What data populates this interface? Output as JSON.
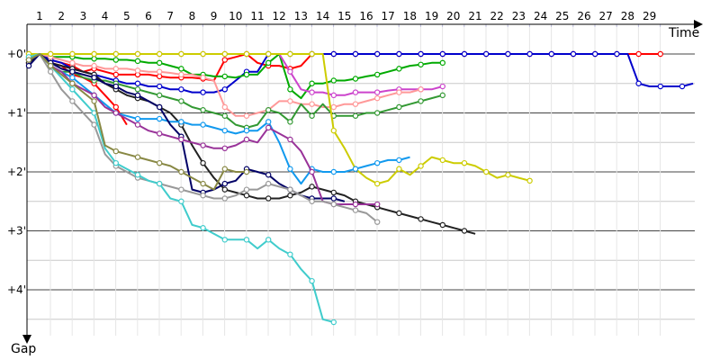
{
  "chart_data": {
    "type": "line",
    "xlabel": "Time",
    "ylabel": "Gap",
    "x_ticks": [
      "1",
      "2",
      "3",
      "4",
      "5",
      "6",
      "7",
      "8",
      "9",
      "10",
      "11",
      "12",
      "13",
      "14",
      "15",
      "16",
      "17",
      "18",
      "19",
      "20",
      "21",
      "22",
      "23",
      "24",
      "25",
      "26",
      "27",
      "28",
      "29"
    ],
    "y_ticks": [
      "+0'",
      "+1'",
      "+2'",
      "+3'",
      "+4'"
    ],
    "ylim": [
      0,
      5
    ],
    "grid": true,
    "legend": "none",
    "x_step": 0.5,
    "series": [
      {
        "color": "#ff0000",
        "values": [
          0.1,
          0,
          0.1,
          0.15,
          0.2,
          0.3,
          0.25,
          0.3,
          0.35,
          0.35,
          0.35,
          0.35,
          0.38,
          0.4,
          0.4,
          0.4,
          0.42,
          0.45,
          0.1,
          0.05,
          0,
          0.15,
          0.2,
          0.2,
          0.25,
          0.2,
          0,
          0,
          0,
          0,
          0,
          0,
          0,
          0,
          0,
          0,
          0,
          0,
          0,
          0,
          0,
          0,
          0,
          0,
          0,
          0,
          0,
          0,
          0,
          0,
          0,
          0,
          0,
          0,
          0,
          0,
          0,
          0,
          0
        ]
      },
      {
        "color": "#ff0000",
        "values": [
          0.15,
          0,
          0.15,
          0.2,
          0.35,
          0.4,
          0.5,
          0.7,
          0.9,
          1.2
        ]
      },
      {
        "color": "#0000cc",
        "values": [
          0.15,
          0,
          0.1,
          0.15,
          0.25,
          0.3,
          0.35,
          0.4,
          0.45,
          0.5,
          0.5,
          0.55,
          0.55,
          0.6,
          0.6,
          0.65,
          0.65,
          0.65,
          0.6,
          0.45,
          0.3,
          0.3,
          0,
          0,
          0,
          0,
          0,
          0,
          0,
          0,
          0,
          0,
          0,
          0,
          0,
          0,
          0,
          0,
          0,
          0,
          0,
          0,
          0,
          0,
          0,
          0,
          0,
          0,
          0,
          0,
          0,
          0,
          0,
          0,
          0,
          0,
          0.5,
          0.55,
          0.55,
          0.55,
          0.55,
          0.5
        ]
      },
      {
        "color": "#00aa00",
        "values": [
          0.05,
          0,
          0.05,
          0.05,
          0.05,
          0.08,
          0.08,
          0.08,
          0.1,
          0.1,
          0.12,
          0.15,
          0.15,
          0.2,
          0.25,
          0.35,
          0.35,
          0.38,
          0.38,
          0.4,
          0.35,
          0.35,
          0.15,
          0,
          0.6,
          0.75,
          0.5,
          0.5,
          0.45,
          0.45,
          0.42,
          0.38,
          0.35,
          0.3,
          0.25,
          0.2,
          0.18,
          0.15,
          0.15
        ]
      },
      {
        "color": "#cc44cc",
        "values": [
          0,
          0,
          0,
          0,
          0,
          0,
          0,
          0,
          0,
          0,
          0,
          0,
          0,
          0,
          0,
          0,
          0,
          0,
          0,
          0,
          0,
          0,
          0,
          0,
          0.3,
          0.6,
          0.65,
          0.65,
          0.7,
          0.7,
          0.65,
          0.65,
          0.65,
          0.62,
          0.6,
          0.6,
          0.6,
          0.6,
          0.55
        ]
      },
      {
        "color": "#ff9999",
        "values": [
          0.05,
          0,
          0.05,
          0.1,
          0.15,
          0.2,
          0.2,
          0.25,
          0.25,
          0.25,
          0.28,
          0.3,
          0.3,
          0.32,
          0.35,
          0.35,
          0.4,
          0.45,
          0.9,
          1.05,
          1.05,
          1.0,
          0.95,
          0.8,
          0.8,
          0.85,
          0.85,
          0.9,
          0.9,
          0.85,
          0.85,
          0.8,
          0.75,
          0.7,
          0.65,
          0.65,
          0.6
        ]
      },
      {
        "color": "#339933",
        "values": [
          0.1,
          0,
          0.2,
          0.3,
          0.3,
          0.4,
          0.45,
          0.45,
          0.5,
          0.55,
          0.6,
          0.65,
          0.7,
          0.75,
          0.8,
          0.9,
          0.95,
          1.0,
          1.05,
          1.2,
          1.25,
          1.2,
          0.95,
          1.0,
          1.15,
          0.85,
          1.05,
          0.85,
          1.05,
          1.05,
          1.05,
          1.0,
          1.0,
          0.95,
          0.9,
          0.85,
          0.8,
          0.75,
          0.7
        ]
      },
      {
        "color": "#222222",
        "values": [
          0.15,
          0,
          0.15,
          0.2,
          0.25,
          0.3,
          0.35,
          0.5,
          0.6,
          0.7,
          0.75,
          0.8,
          0.9,
          1.0,
          1.2,
          1.55,
          1.85,
          2.1,
          2.3,
          2.35,
          2.4,
          2.45,
          2.45,
          2.45,
          2.4,
          2.35,
          2.25,
          2.3,
          2.35,
          2.4,
          2.5,
          2.55,
          2.6,
          2.65,
          2.7,
          2.75,
          2.8,
          2.85,
          2.9,
          2.95,
          3.0,
          3.05
        ]
      },
      {
        "color": "#cccc00",
        "values": [
          0,
          0,
          0,
          0,
          0,
          0,
          0,
          0,
          0,
          0,
          0,
          0,
          0,
          0,
          0,
          0,
          0,
          0,
          0,
          0,
          0,
          0,
          0,
          0,
          0,
          0,
          0,
          0,
          1.3,
          1.6,
          1.95,
          2.1,
          2.2,
          2.15,
          1.95,
          2.05,
          1.9,
          1.75,
          1.8,
          1.85,
          1.85,
          1.9,
          2.0,
          2.1,
          2.05,
          2.1,
          2.15
        ]
      },
      {
        "color": "#1199ee",
        "values": [
          0.1,
          0,
          0.2,
          0.3,
          0.4,
          0.55,
          0.7,
          0.85,
          1.0,
          1.05,
          1.1,
          1.1,
          1.1,
          1.15,
          1.15,
          1.2,
          1.2,
          1.25,
          1.3,
          1.35,
          1.3,
          1.3,
          1.15,
          1.5,
          1.95,
          2.2,
          1.95,
          2.0,
          2.0,
          2.0,
          1.95,
          1.9,
          1.85,
          1.8,
          1.8,
          1.75
        ]
      },
      {
        "color": "#000066",
        "values": [
          0.2,
          0,
          0.15,
          0.25,
          0.3,
          0.35,
          0.4,
          0.5,
          0.55,
          0.65,
          0.7,
          0.8,
          0.9,
          1.2,
          1.4,
          2.3,
          2.35,
          2.3,
          2.2,
          2.15,
          1.95,
          2.0,
          2.05,
          2.2,
          2.3,
          2.4,
          2.45,
          2.45,
          2.45,
          2.5
        ]
      },
      {
        "color": "#993399",
        "values": [
          0.1,
          0,
          0.2,
          0.3,
          0.5,
          0.6,
          0.7,
          0.9,
          1.0,
          1.1,
          1.2,
          1.3,
          1.35,
          1.4,
          1.45,
          1.5,
          1.55,
          1.6,
          1.6,
          1.55,
          1.45,
          1.5,
          1.25,
          1.35,
          1.45,
          1.65,
          2.0,
          2.5,
          2.55,
          2.55,
          2.55,
          2.55,
          2.55
        ]
      },
      {
        "color": "#999999",
        "values": [
          0.1,
          0,
          0.3,
          0.6,
          0.8,
          1.0,
          1.2,
          1.7,
          1.9,
          2.0,
          2.1,
          2.15,
          2.2,
          2.25,
          2.3,
          2.35,
          2.4,
          2.45,
          2.45,
          2.4,
          2.3,
          2.3,
          2.2,
          2.25,
          2.3,
          2.4,
          2.5,
          2.5,
          2.55,
          2.6,
          2.65,
          2.7,
          2.85
        ]
      },
      {
        "color": "#40cccc",
        "values": [
          0.05,
          0,
          0.2,
          0.4,
          0.6,
          0.8,
          1.0,
          1.6,
          1.85,
          1.95,
          2.05,
          2.15,
          2.2,
          2.45,
          2.5,
          2.9,
          2.95,
          3.05,
          3.15,
          3.15,
          3.15,
          3.3,
          3.15,
          3.3,
          3.4,
          3.65,
          3.85,
          4.5,
          4.55
        ]
      },
      {
        "color": "#888844",
        "values": [
          0.1,
          0,
          0.2,
          0.35,
          0.5,
          0.65,
          0.8,
          1.55,
          1.65,
          1.7,
          1.75,
          1.8,
          1.85,
          1.9,
          2.0,
          2.1,
          2.2,
          2.3,
          1.95,
          2.0,
          2.0
        ]
      }
    ]
  }
}
